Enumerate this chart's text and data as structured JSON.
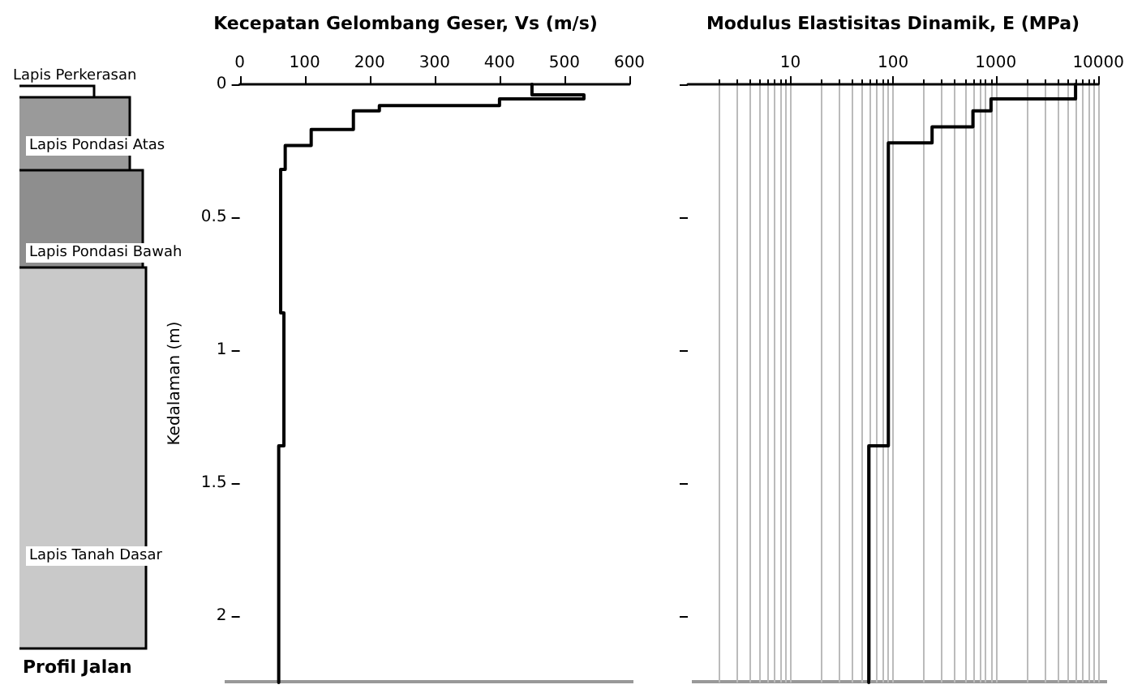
{
  "chart_data": [
    {
      "type": "line",
      "annotations": [
        "Lapis Perkerasan",
        "Lapis Pondasi Atas",
        "Lapis Pondasi Bawah",
        "Lapis Tanah Dasar",
        "Profil Jalan"
      ],
      "title": "Kecepatan Gelombang Geser, Vs (m/s)",
      "ylabel": "Kedalaman (m)",
      "xlim": [
        0,
        600
      ],
      "xticks": [
        0,
        100,
        200,
        300,
        400,
        500,
        600
      ],
      "ylim": [
        2.25,
        0
      ],
      "yticks": [
        0,
        0.5,
        1,
        1.5,
        2
      ],
      "grid": false,
      "marker": "none",
      "line_style": "solid",
      "series": [
        {
          "color": "#000000",
          "x": [
            450,
            450,
            530,
            530,
            400,
            400,
            215,
            215,
            175,
            175,
            110,
            110,
            70,
            70,
            63,
            63,
            68,
            68,
            60,
            60
          ],
          "values": [
            0,
            0.04,
            0.04,
            0.055,
            0.055,
            0.08,
            0.08,
            0.1,
            0.1,
            0.17,
            0.17,
            0.23,
            0.23,
            0.32,
            0.32,
            0.86,
            0.86,
            1.36,
            1.36,
            2.25
          ]
        }
      ]
    },
    {
      "type": "line",
      "title": "Modulus Elastisitas Dinamik, E (MPa)",
      "log": "x",
      "xlim": [
        1,
        10000
      ],
      "xticks": [
        10,
        100,
        1000,
        10000
      ],
      "ylim": [
        2.25,
        0
      ],
      "yticks": [
        0,
        0.5,
        1,
        1.5,
        2
      ],
      "tick_labels": "x",
      "grid": "x",
      "marker": "none",
      "line_style": "solid",
      "series": [
        {
          "color": "#000000",
          "x": [
            6000,
            6000,
            900,
            900,
            600,
            600,
            240,
            240,
            90,
            90,
            58,
            58
          ],
          "values": [
            0,
            0.055,
            0.055,
            0.1,
            0.1,
            0.16,
            0.16,
            0.22,
            0.22,
            1.36,
            1.36,
            2.25
          ]
        }
      ]
    }
  ]
}
